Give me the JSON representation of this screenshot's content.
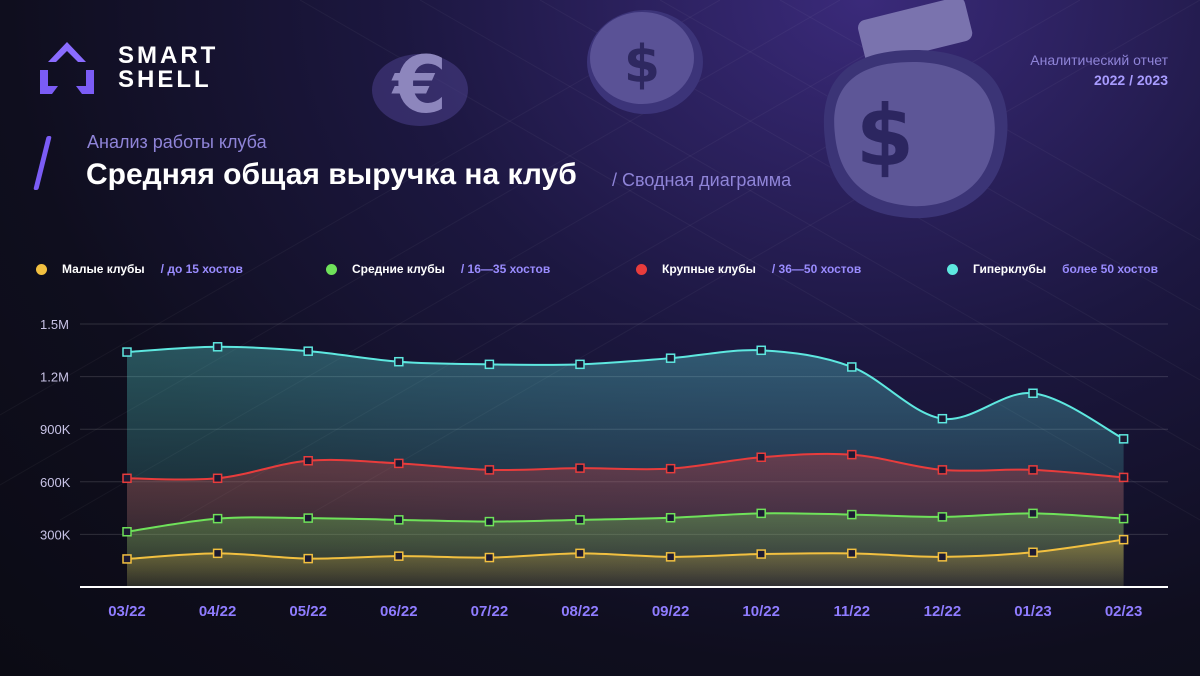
{
  "brand": {
    "line1": "SMART",
    "line2": "SHELL"
  },
  "report": {
    "label": "Аналитический отчет",
    "years": "2022 / 2023"
  },
  "header": {
    "subtitle": "Анализ работы клуба",
    "title": "Средняя общая выручка на клуб",
    "note": "/ Сводная диаграмма"
  },
  "colors": {
    "accent": "#7b5cf5",
    "small": "#f2c040",
    "medium": "#6fe25a",
    "large": "#e83c3c",
    "hyper": "#5ee8e0"
  },
  "legend": [
    {
      "name": "Малые клубы",
      "range": "/ до 15 хостов",
      "color": "#f2c040"
    },
    {
      "name": "Средние клубы",
      "range": "/ 16—35 хостов",
      "color": "#6fe25a"
    },
    {
      "name": "Крупные клубы",
      "range": "/ 36—50 хостов",
      "color": "#e83c3c"
    },
    {
      "name": "Гиперклубы",
      "range": "более 50 хостов",
      "color": "#5ee8e0"
    }
  ],
  "chart_data": {
    "type": "area",
    "title": "Средняя общая выручка на клуб",
    "categories": [
      "03/22",
      "04/22",
      "05/22",
      "06/22",
      "07/22",
      "08/22",
      "09/22",
      "10/22",
      "11/22",
      "12/22",
      "01/23",
      "02/23"
    ],
    "ylim": [
      0,
      1500000
    ],
    "yticks": [
      300000,
      600000,
      900000,
      1200000,
      1500000
    ],
    "ytick_labels": [
      "300K",
      "600K",
      "900K",
      "1.2M",
      "1.5M"
    ],
    "grid": true,
    "legend_position": "top",
    "series": [
      {
        "name": "Гиперклубы",
        "color": "#5ee8e0",
        "values": [
          1340000,
          1370000,
          1345000,
          1285000,
          1270000,
          1270000,
          1305000,
          1350000,
          1255000,
          960000,
          1105000,
          845000
        ]
      },
      {
        "name": "Крупные клубы",
        "color": "#e83c3c",
        "values": [
          620000,
          620000,
          720000,
          705000,
          668000,
          678000,
          675000,
          740000,
          755000,
          668000,
          668000,
          625000
        ]
      },
      {
        "name": "Средние клубы",
        "color": "#6fe25a",
        "values": [
          315000,
          390000,
          393000,
          383000,
          373000,
          383000,
          395000,
          420000,
          413000,
          400000,
          420000,
          390000
        ]
      },
      {
        "name": "Малые клубы",
        "color": "#f2c040",
        "values": [
          160000,
          192000,
          162000,
          176000,
          168000,
          192000,
          172000,
          188000,
          192000,
          172000,
          198000,
          270000
        ]
      }
    ]
  }
}
